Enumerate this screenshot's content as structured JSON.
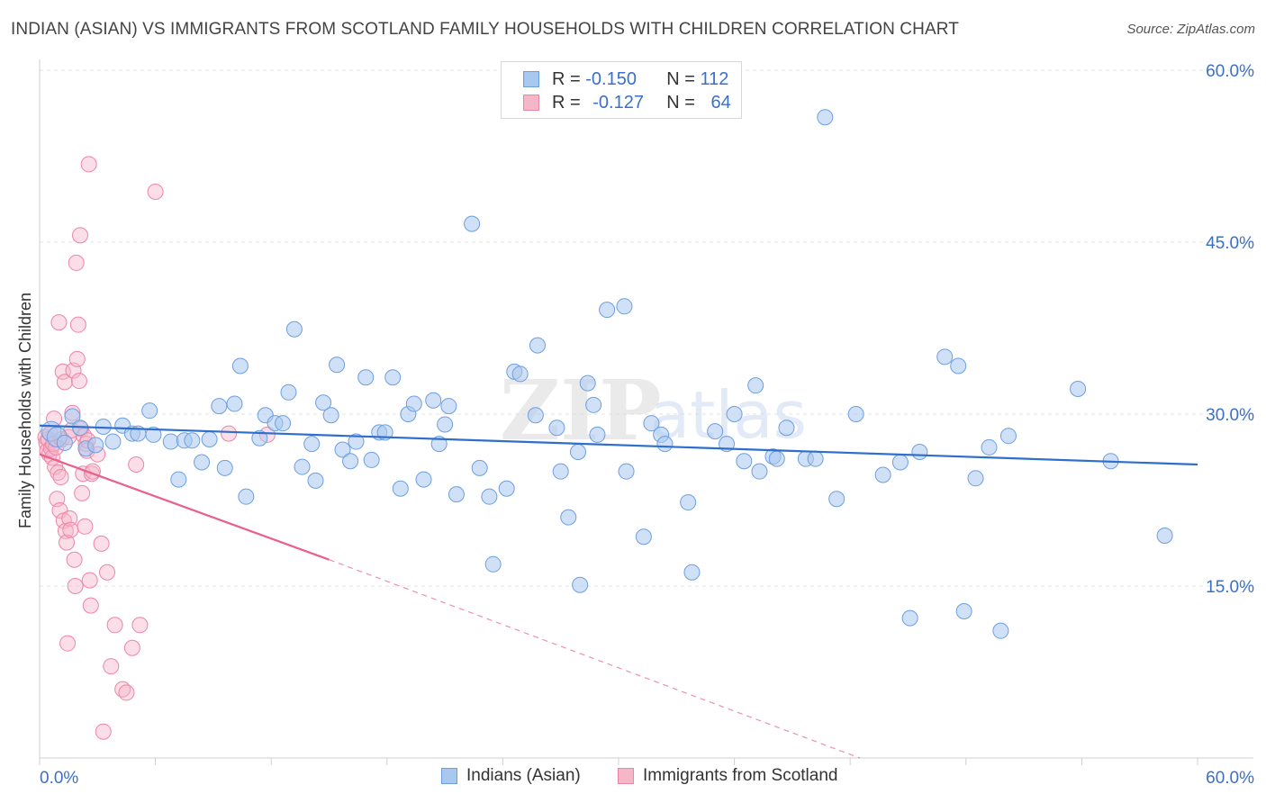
{
  "title": "INDIAN (ASIAN) VS IMMIGRANTS FROM SCOTLAND FAMILY HOUSEHOLDS WITH CHILDREN CORRELATION CHART",
  "source": "Source: ZipAtlas.com",
  "watermark": {
    "zip": "ZIP",
    "atlas": "atlas"
  },
  "legend": {
    "rows": [
      {
        "r_label": "R =",
        "r_value": "-0.150",
        "n_label": "N =",
        "n_value": "112"
      },
      {
        "r_label": "R =",
        "r_value": "-0.127",
        "n_label": "N =",
        "n_value": "64"
      }
    ]
  },
  "colors": {
    "blue_fill": "#a9c8f0",
    "blue_stroke": "#6d9fe0",
    "blue_line": "#2f6fcc",
    "pink_fill": "#f6b6ca",
    "pink_stroke": "#ec86a6",
    "pink_line": "#e8608e",
    "axis_label": "#3a70c8",
    "grid": "#e3e3e3"
  },
  "chart_data": {
    "type": "scatter",
    "title": "INDIAN (ASIAN) VS IMMIGRANTS FROM SCOTLAND FAMILY HOUSEHOLDS WITH CHILDREN CORRELATION CHART",
    "xlabel": "",
    "ylabel": "Family Households with Children",
    "xlim": [
      0,
      60
    ],
    "ylim": [
      0,
      60
    ],
    "x_tick_labels": [
      "0.0%",
      "60.0%"
    ],
    "y_ticks": [
      15,
      30,
      45,
      60
    ],
    "y_tick_labels": [
      "15.0%",
      "30.0%",
      "45.0%",
      "60.0%"
    ],
    "grid": true,
    "legend_position": "top-center",
    "series": [
      {
        "name": "Indians (Asian)",
        "r": -0.15,
        "n": 112,
        "trend": {
          "x0": 0,
          "y0": 29.0,
          "x1": 60,
          "y1": 25.6,
          "dashed_to": null
        },
        "points": [
          [
            0.6,
            28.5
          ],
          [
            0.9,
            28.0
          ],
          [
            1.3,
            27.5
          ],
          [
            1.7,
            29.8
          ],
          [
            2.1,
            28.8
          ],
          [
            2.4,
            27.0
          ],
          [
            2.9,
            27.3
          ],
          [
            3.3,
            28.9
          ],
          [
            3.8,
            27.6
          ],
          [
            4.3,
            29.0
          ],
          [
            4.8,
            28.3
          ],
          [
            5.1,
            28.3
          ],
          [
            5.7,
            30.3
          ],
          [
            5.9,
            28.2
          ],
          [
            6.8,
            27.6
          ],
          [
            7.2,
            24.3
          ],
          [
            7.5,
            27.7
          ],
          [
            7.9,
            27.7
          ],
          [
            8.4,
            25.8
          ],
          [
            8.8,
            27.8
          ],
          [
            9.3,
            30.7
          ],
          [
            9.6,
            25.3
          ],
          [
            10.1,
            30.9
          ],
          [
            10.4,
            34.2
          ],
          [
            10.7,
            22.8
          ],
          [
            11.4,
            27.9
          ],
          [
            11.7,
            29.9
          ],
          [
            12.2,
            29.2
          ],
          [
            12.6,
            29.2
          ],
          [
            12.9,
            31.9
          ],
          [
            13.2,
            37.4
          ],
          [
            13.6,
            25.4
          ],
          [
            14.1,
            27.4
          ],
          [
            14.3,
            24.2
          ],
          [
            14.7,
            31.0
          ],
          [
            15.1,
            29.9
          ],
          [
            15.4,
            34.3
          ],
          [
            15.7,
            26.9
          ],
          [
            16.1,
            25.9
          ],
          [
            16.4,
            27.6
          ],
          [
            16.9,
            33.2
          ],
          [
            17.2,
            26.0
          ],
          [
            17.6,
            28.4
          ],
          [
            17.9,
            28.4
          ],
          [
            18.3,
            33.2
          ],
          [
            18.7,
            23.5
          ],
          [
            19.1,
            30.0
          ],
          [
            19.4,
            30.9
          ],
          [
            19.9,
            24.3
          ],
          [
            20.4,
            31.2
          ],
          [
            20.7,
            27.4
          ],
          [
            21.0,
            29.1
          ],
          [
            21.2,
            30.7
          ],
          [
            21.6,
            23.0
          ],
          [
            22.4,
            46.6
          ],
          [
            22.8,
            25.3
          ],
          [
            23.3,
            22.8
          ],
          [
            23.5,
            16.9
          ],
          [
            24.2,
            23.5
          ],
          [
            24.6,
            33.7
          ],
          [
            24.9,
            33.5
          ],
          [
            25.7,
            29.9
          ],
          [
            25.8,
            36.0
          ],
          [
            26.8,
            28.8
          ],
          [
            27.0,
            25.0
          ],
          [
            27.4,
            21.0
          ],
          [
            27.9,
            26.7
          ],
          [
            28.0,
            15.1
          ],
          [
            28.4,
            32.7
          ],
          [
            28.7,
            30.8
          ],
          [
            28.9,
            28.2
          ],
          [
            29.4,
            39.1
          ],
          [
            30.3,
            39.4
          ],
          [
            30.4,
            25.0
          ],
          [
            31.3,
            19.3
          ],
          [
            31.7,
            29.2
          ],
          [
            32.2,
            28.2
          ],
          [
            32.4,
            27.4
          ],
          [
            33.6,
            22.3
          ],
          [
            33.8,
            16.2
          ],
          [
            35.0,
            28.5
          ],
          [
            35.6,
            27.4
          ],
          [
            36.0,
            30.0
          ],
          [
            36.5,
            25.9
          ],
          [
            37.1,
            32.5
          ],
          [
            37.3,
            25.0
          ],
          [
            38.0,
            26.3
          ],
          [
            38.2,
            26.1
          ],
          [
            38.7,
            28.8
          ],
          [
            39.7,
            26.1
          ],
          [
            40.2,
            26.1
          ],
          [
            40.7,
            55.9
          ],
          [
            41.3,
            22.6
          ],
          [
            42.3,
            30.0
          ],
          [
            43.7,
            24.7
          ],
          [
            44.6,
            25.8
          ],
          [
            45.1,
            12.2
          ],
          [
            45.6,
            26.7
          ],
          [
            46.9,
            35.0
          ],
          [
            47.6,
            34.2
          ],
          [
            47.9,
            12.8
          ],
          [
            48.5,
            24.4
          ],
          [
            49.2,
            27.1
          ],
          [
            49.8,
            11.1
          ],
          [
            50.2,
            28.1
          ],
          [
            53.8,
            32.2
          ],
          [
            55.5,
            25.9
          ],
          [
            58.3,
            19.4
          ]
        ]
      },
      {
        "name": "Immigrants from Scotland",
        "r": -0.127,
        "n": 64,
        "trend": {
          "x0": 0,
          "y0": 26.5,
          "x1": 15.0,
          "y1": 17.3,
          "dashed_to": [
            42.5,
            0
          ]
        },
        "points": [
          [
            0.3,
            28.0
          ],
          [
            0.35,
            27.5
          ],
          [
            0.4,
            26.8
          ],
          [
            0.45,
            27.8
          ],
          [
            0.5,
            26.5
          ],
          [
            0.55,
            28.3
          ],
          [
            0.6,
            27.0
          ],
          [
            0.65,
            26.2
          ],
          [
            0.7,
            27.4
          ],
          [
            0.75,
            29.6
          ],
          [
            0.8,
            25.4
          ],
          [
            0.85,
            27.1
          ],
          [
            0.9,
            22.6
          ],
          [
            0.95,
            24.9
          ],
          [
            1.0,
            38.0
          ],
          [
            1.05,
            21.6
          ],
          [
            1.1,
            24.5
          ],
          [
            1.15,
            27.8
          ],
          [
            1.2,
            33.7
          ],
          [
            1.25,
            20.7
          ],
          [
            1.3,
            32.8
          ],
          [
            1.35,
            19.8
          ],
          [
            1.4,
            18.8
          ],
          [
            1.45,
            10.0
          ],
          [
            1.5,
            28.0
          ],
          [
            1.55,
            20.9
          ],
          [
            1.6,
            19.9
          ],
          [
            1.65,
            28.6
          ],
          [
            1.7,
            30.1
          ],
          [
            1.75,
            33.8
          ],
          [
            1.8,
            17.3
          ],
          [
            1.85,
            15.0
          ],
          [
            1.9,
            43.2
          ],
          [
            1.95,
            34.8
          ],
          [
            2.0,
            37.8
          ],
          [
            2.05,
            32.9
          ],
          [
            2.1,
            45.6
          ],
          [
            2.15,
            28.7
          ],
          [
            2.2,
            23.1
          ],
          [
            2.25,
            24.8
          ],
          [
            2.3,
            28.1
          ],
          [
            2.35,
            20.2
          ],
          [
            2.4,
            27.4
          ],
          [
            2.45,
            26.8
          ],
          [
            2.5,
            27.7
          ],
          [
            2.55,
            51.8
          ],
          [
            2.6,
            15.5
          ],
          [
            2.65,
            13.3
          ],
          [
            2.7,
            24.8
          ],
          [
            2.75,
            25.0
          ],
          [
            3.0,
            26.5
          ],
          [
            3.2,
            18.7
          ],
          [
            3.3,
            2.3
          ],
          [
            3.5,
            16.2
          ],
          [
            3.7,
            8.0
          ],
          [
            3.9,
            11.6
          ],
          [
            4.3,
            6.0
          ],
          [
            4.5,
            5.7
          ],
          [
            4.8,
            9.6
          ],
          [
            5.0,
            25.6
          ],
          [
            5.2,
            11.6
          ],
          [
            6.0,
            49.4
          ],
          [
            9.8,
            28.3
          ],
          [
            11.8,
            28.2
          ]
        ]
      }
    ]
  }
}
